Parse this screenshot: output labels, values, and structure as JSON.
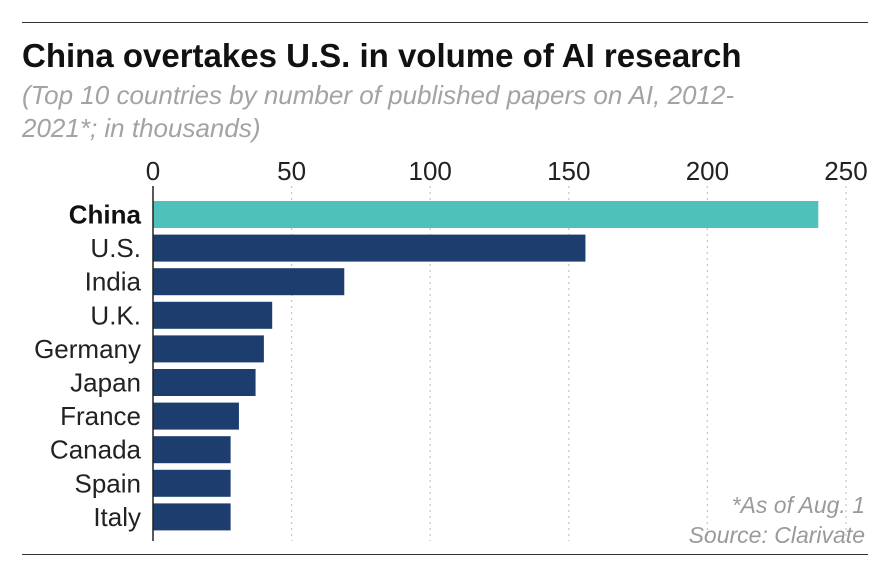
{
  "chart_data": {
    "type": "bar",
    "orientation": "horizontal",
    "title": "China overtakes U.S. in volume of AI research",
    "subtitle": "(Top 10 countries by number of published papers on AI, 2012-2021*; in thousands)",
    "categories": [
      "China",
      "U.S.",
      "India",
      "U.K.",
      "Germany",
      "Japan",
      "France",
      "Canada",
      "Spain",
      "Italy"
    ],
    "values": [
      240,
      156,
      69,
      43,
      40,
      37,
      31,
      28,
      28,
      28
    ],
    "highlight_category": "China",
    "xlim": [
      0,
      250
    ],
    "xticks": [
      "0",
      "50",
      "100",
      "150",
      "200",
      "250"
    ],
    "xtick_values": [
      0,
      50,
      100,
      150,
      200,
      250
    ],
    "axis_position": "top",
    "grid": "vertical dotted",
    "colors": {
      "highlight": "#4fc1bb",
      "bar": "#1c3d6e",
      "grid": "#c8c8c8",
      "axis": "#222222"
    },
    "footnote": "*As of Aug. 1",
    "source": "Source: Clarivate"
  }
}
